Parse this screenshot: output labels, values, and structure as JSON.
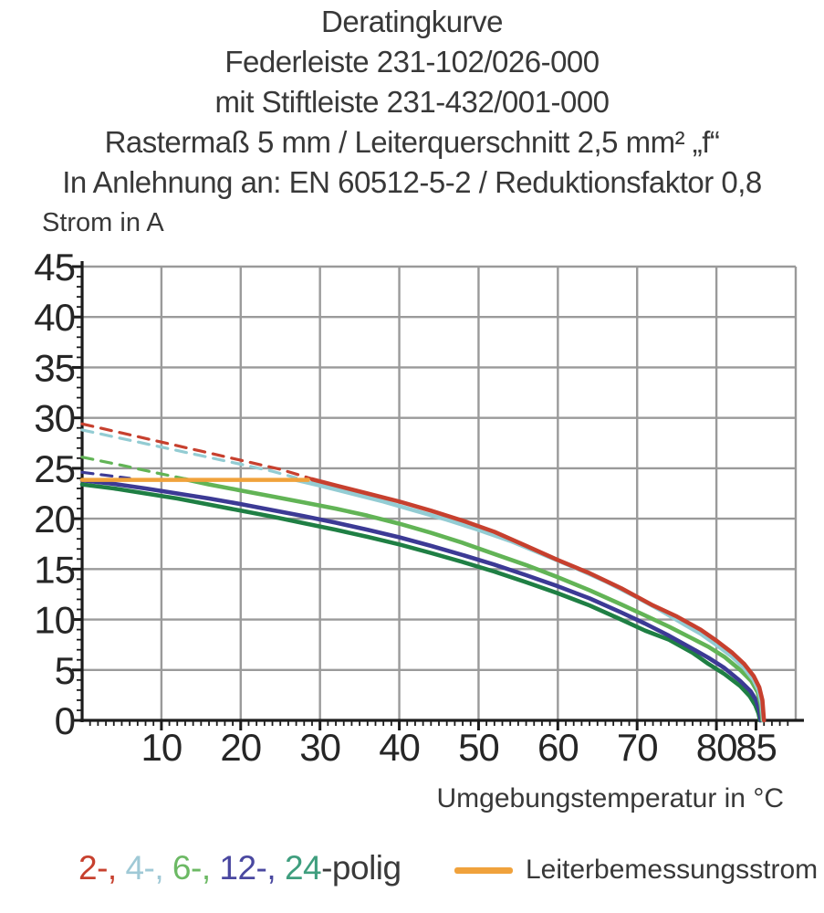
{
  "header": {
    "lines": [
      "Deratingkurve",
      "Federleiste 231-102/026-000",
      "mit Stiftleiste 231-432/001-000",
      "Rastermaß 5 mm / Leiterquerschnitt 2,5 mm² „f“",
      "In Anlehnung an: EN 60512-5-2 / Reduktionsfaktor 0,8"
    ]
  },
  "chart_data": {
    "type": "line",
    "title": "Deratingkurve",
    "ylabel": "Strom in A",
    "xlabel": "Umgebungstemperatur in °C",
    "xlim": [
      0,
      90
    ],
    "ylim": [
      0,
      45
    ],
    "x_tick_labels": [
      10,
      20,
      30,
      40,
      50,
      60,
      70,
      80,
      85
    ],
    "y_tick_labels": [
      0,
      5,
      10,
      15,
      20,
      25,
      30,
      35,
      40,
      45
    ],
    "x_grid_step": 10,
    "y_grid_step": 5,
    "x_minor_step": 1,
    "y_minor_step": 1,
    "grid": true,
    "legend_position": "bottom",
    "colors": {
      "grid": "#9a9a9a",
      "axis": "#1c1c1c"
    },
    "series": [
      {
        "name": "12-polig",
        "variant": "dashed",
        "color": "#3c3a95",
        "width": 3.2,
        "dash": [
          12,
          9
        ],
        "points": [
          [
            0,
            24.6
          ],
          [
            3,
            24.3
          ],
          [
            6,
            24.0
          ]
        ]
      },
      {
        "name": "6-polig",
        "variant": "dashed",
        "color": "#62b456",
        "width": 3.2,
        "dash": [
          12,
          9
        ],
        "points": [
          [
            0,
            26.1
          ],
          [
            5,
            25.3
          ],
          [
            9,
            24.6
          ],
          [
            13,
            23.95
          ]
        ]
      },
      {
        "name": "4-polig",
        "variant": "dashed",
        "color": "#93ccd3",
        "width": 3.2,
        "dash": [
          12,
          9
        ],
        "points": [
          [
            0,
            28.8
          ],
          [
            5,
            27.95
          ],
          [
            10,
            27.1
          ],
          [
            15,
            26.25
          ],
          [
            20,
            25.4
          ],
          [
            24,
            24.7
          ],
          [
            27,
            24.05
          ]
        ]
      },
      {
        "name": "2-polig",
        "variant": "dashed",
        "color": "#c7402e",
        "width": 3.2,
        "dash": [
          12,
          9
        ],
        "points": [
          [
            0,
            29.4
          ],
          [
            5,
            28.5
          ],
          [
            10,
            27.6
          ],
          [
            15,
            26.7
          ],
          [
            20,
            25.8
          ],
          [
            25,
            24.9
          ],
          [
            29,
            23.95
          ]
        ]
      },
      {
        "name": "24-polig",
        "variant": "solid",
        "color": "#1f7f44",
        "width": 4.6,
        "points": [
          [
            0,
            23.4
          ],
          [
            4,
            23.0
          ],
          [
            8,
            22.5
          ],
          [
            12,
            22.0
          ],
          [
            16,
            21.4
          ],
          [
            20,
            20.8
          ],
          [
            24,
            20.2
          ],
          [
            28,
            19.55
          ],
          [
            32,
            18.9
          ],
          [
            36,
            18.2
          ],
          [
            40,
            17.45
          ],
          [
            44,
            16.6
          ],
          [
            48,
            15.7
          ],
          [
            52,
            14.75
          ],
          [
            56,
            13.7
          ],
          [
            60,
            12.6
          ],
          [
            64,
            11.4
          ],
          [
            68,
            10.0
          ],
          [
            71,
            8.9
          ],
          [
            74,
            8.0
          ],
          [
            77,
            6.7
          ],
          [
            79,
            5.6
          ],
          [
            81,
            4.6
          ],
          [
            83,
            3.4
          ],
          [
            84.2,
            2.4
          ],
          [
            84.9,
            1.5
          ],
          [
            85.3,
            0.7
          ],
          [
            85.5,
            0
          ]
        ]
      },
      {
        "name": "12-polig",
        "variant": "solid",
        "color": "#3c3a95",
        "width": 4.6,
        "points": [
          [
            0,
            23.8
          ],
          [
            4,
            23.45
          ],
          [
            8,
            23.0
          ],
          [
            12,
            22.5
          ],
          [
            16,
            22.0
          ],
          [
            20,
            21.45
          ],
          [
            24,
            20.85
          ],
          [
            28,
            20.25
          ],
          [
            32,
            19.6
          ],
          [
            36,
            18.9
          ],
          [
            40,
            18.15
          ],
          [
            44,
            17.3
          ],
          [
            48,
            16.4
          ],
          [
            52,
            15.45
          ],
          [
            56,
            14.4
          ],
          [
            60,
            13.3
          ],
          [
            64,
            12.1
          ],
          [
            68,
            10.7
          ],
          [
            71,
            9.6
          ],
          [
            74,
            8.4
          ],
          [
            77,
            7.1
          ],
          [
            79,
            6.2
          ],
          [
            81,
            5.2
          ],
          [
            83,
            3.9
          ],
          [
            84.3,
            2.9
          ],
          [
            85,
            2.0
          ],
          [
            85.4,
            1.0
          ],
          [
            85.6,
            0
          ]
        ]
      },
      {
        "name": "6-polig",
        "variant": "solid",
        "color": "#62b456",
        "width": 4.6,
        "points": [
          [
            13,
            23.9
          ],
          [
            16,
            23.4
          ],
          [
            20,
            22.8
          ],
          [
            24,
            22.2
          ],
          [
            28,
            21.6
          ],
          [
            32,
            21.0
          ],
          [
            36,
            20.3
          ],
          [
            40,
            19.5
          ],
          [
            44,
            18.6
          ],
          [
            48,
            17.6
          ],
          [
            52,
            16.5
          ],
          [
            56,
            15.4
          ],
          [
            60,
            14.2
          ],
          [
            64,
            12.9
          ],
          [
            68,
            11.5
          ],
          [
            71,
            10.4
          ],
          [
            74,
            9.3
          ],
          [
            77,
            8.1
          ],
          [
            79,
            7.3
          ],
          [
            81,
            6.3
          ],
          [
            83,
            5.0
          ],
          [
            84.4,
            3.9
          ],
          [
            85.2,
            2.8
          ],
          [
            85.6,
            1.5
          ],
          [
            85.8,
            0
          ]
        ]
      },
      {
        "name": "4-polig",
        "variant": "solid",
        "color": "#93ccd3",
        "width": 4.6,
        "points": [
          [
            27,
            23.85
          ],
          [
            30,
            23.3
          ],
          [
            34,
            22.5
          ],
          [
            38,
            21.7
          ],
          [
            42,
            20.8
          ],
          [
            46,
            19.9
          ],
          [
            50,
            18.9
          ],
          [
            54,
            17.8
          ],
          [
            58,
            16.5
          ],
          [
            62,
            15.2
          ],
          [
            66,
            13.8
          ],
          [
            70,
            12.2
          ],
          [
            73,
            10.9
          ],
          [
            76,
            9.5
          ],
          [
            78,
            8.6
          ],
          [
            80,
            7.5
          ],
          [
            82,
            6.3
          ],
          [
            83.5,
            5.2
          ],
          [
            84.7,
            4.0
          ],
          [
            85.3,
            3.0
          ],
          [
            85.7,
            1.7
          ],
          [
            85.9,
            0
          ]
        ]
      },
      {
        "name": "2-polig",
        "variant": "solid",
        "color": "#c7402e",
        "width": 4.6,
        "points": [
          [
            29,
            23.9
          ],
          [
            32,
            23.3
          ],
          [
            36,
            22.5
          ],
          [
            40,
            21.7
          ],
          [
            44,
            20.8
          ],
          [
            48,
            19.8
          ],
          [
            52,
            18.7
          ],
          [
            56,
            17.3
          ],
          [
            60,
            15.9
          ],
          [
            64,
            14.6
          ],
          [
            68,
            13.1
          ],
          [
            72,
            11.4
          ],
          [
            75,
            10.3
          ],
          [
            78,
            9.0
          ],
          [
            80,
            7.9
          ],
          [
            82,
            6.7
          ],
          [
            83.5,
            5.6
          ],
          [
            84.7,
            4.4
          ],
          [
            85.4,
            3.3
          ],
          [
            85.8,
            2.0
          ],
          [
            86,
            0
          ]
        ]
      },
      {
        "name": "Leiterbemessungsstrom",
        "variant": "solid",
        "color": "#f0a23c",
        "width": 4.5,
        "points": [
          [
            0,
            23.85
          ],
          [
            28.5,
            23.85
          ]
        ]
      }
    ]
  },
  "legend": {
    "poles_parts": [
      {
        "text": "2-,",
        "color": "#c7402e"
      },
      {
        "text": " 4-,",
        "color": "#9fc9d6"
      },
      {
        "text": " 6-,",
        "color": "#6cb964"
      },
      {
        "text": " 12-,",
        "color": "#4a48a0"
      },
      {
        "text": " 24",
        "color": "#3f9e7e"
      },
      {
        "text": "-polig",
        "color": "#3a3a3a"
      }
    ],
    "rated_label": "Leiterbemessungsstrom",
    "rated_color": "#f0a23c"
  }
}
